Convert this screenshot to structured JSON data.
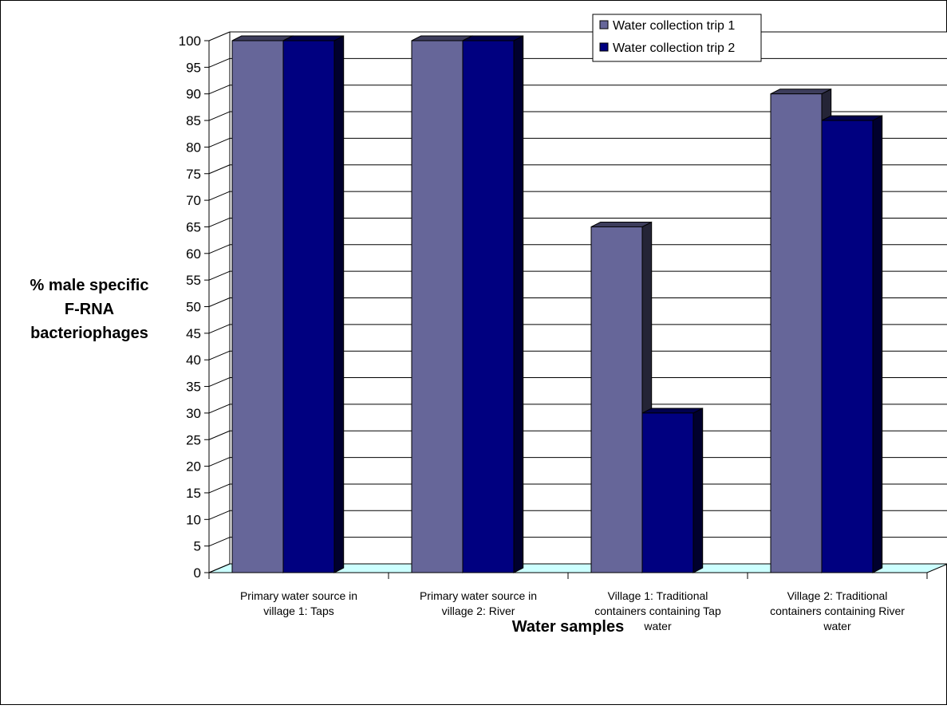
{
  "chart_data": {
    "type": "bar",
    "title": "",
    "xlabel": "Water samples",
    "ylabel": [
      "% male specific",
      "F-RNA",
      "bacteriophages"
    ],
    "ylim": [
      0,
      100
    ],
    "yticks": [
      0,
      5,
      10,
      15,
      20,
      25,
      30,
      35,
      40,
      45,
      50,
      55,
      60,
      65,
      70,
      75,
      80,
      85,
      90,
      95,
      100
    ],
    "categories": [
      [
        "Primary water source in",
        "village 1: Taps"
      ],
      [
        "Primary water source in",
        "village 2: River"
      ],
      [
        "Village 1: Traditional",
        "containers containing Tap",
        "water"
      ],
      [
        "Village 2: Traditional",
        "containers containing River",
        "water"
      ]
    ],
    "series": [
      {
        "name": "Water collection trip 1",
        "values": [
          100,
          100,
          65,
          90
        ],
        "color": "#666699"
      },
      {
        "name": "Water collection trip 2",
        "values": [
          100,
          100,
          30,
          85
        ],
        "color": "#000080"
      }
    ],
    "grid": true,
    "legend_position": "top-right",
    "floor_color": "#ccffff"
  }
}
